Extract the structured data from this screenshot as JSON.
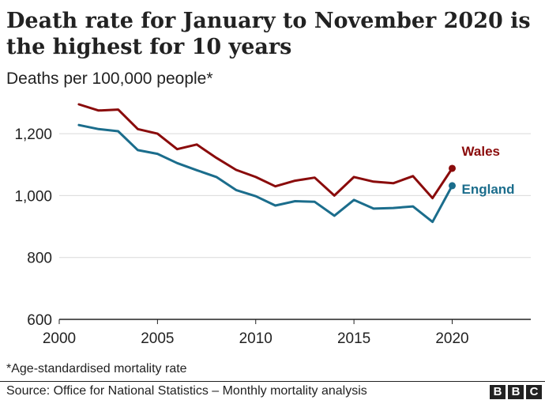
{
  "header": {
    "title": "Death rate for January to November 2020 is the highest for 10 years",
    "subtitle": "Deaths per 100,000 people*"
  },
  "footer": {
    "note": "*Age-standardised mortality rate",
    "source": "Source: Office for National Statistics – Monthly mortality analysis",
    "logo_letters": [
      "B",
      "B",
      "C"
    ]
  },
  "chart_data": {
    "type": "line",
    "title": "Death rate for January to November 2020 is the highest for 10 years",
    "ylabel": "Deaths per 100,000 people*",
    "xlabel": "",
    "xlim": [
      2000,
      2024
    ],
    "ylim": [
      600,
      1300
    ],
    "xticks": [
      2000,
      2005,
      2010,
      2015,
      2020
    ],
    "yticks": [
      600,
      800,
      1000,
      1200
    ],
    "ytick_labels": [
      "600",
      "800",
      "1,000",
      "1,200"
    ],
    "x": [
      2001,
      2002,
      2003,
      2004,
      2005,
      2006,
      2007,
      2008,
      2009,
      2010,
      2011,
      2012,
      2013,
      2014,
      2015,
      2016,
      2017,
      2018,
      2019,
      2020
    ],
    "series": [
      {
        "name": "Wales",
        "color": "#8a0b0b",
        "values": [
          1295,
          1275,
          1278,
          1215,
          1200,
          1150,
          1165,
          1122,
          1083,
          1060,
          1030,
          1048,
          1058,
          1000,
          1060,
          1045,
          1040,
          1063,
          992,
          1088
        ]
      },
      {
        "name": "England",
        "color": "#1b6d8c",
        "values": [
          1228,
          1215,
          1208,
          1147,
          1135,
          1105,
          1082,
          1060,
          1018,
          998,
          968,
          982,
          980,
          935,
          986,
          958,
          960,
          965,
          915,
          1032
        ]
      }
    ],
    "grid": true,
    "legend": "inline-labels-right"
  }
}
